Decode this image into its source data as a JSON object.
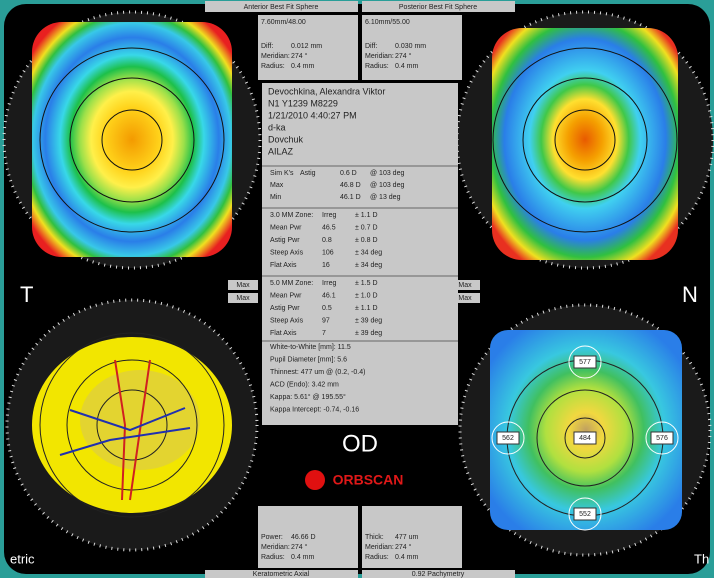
{
  "header": {
    "anterior_label": "Anterior Best Fit Sphere",
    "posterior_label": "Posterior Best Fit Sphere"
  },
  "anterior_box": {
    "title": "7.60mm/48.00",
    "rows": [
      {
        "label": "Diff:",
        "value": "0.012 mm"
      },
      {
        "label": "Meridian:",
        "value": "274 °"
      },
      {
        "label": "Radius:",
        "value": "0.4 mm"
      }
    ]
  },
  "posterior_box": {
    "title": "6.10mm/55.00",
    "rows": [
      {
        "label": "Diff:",
        "value": "0.030 mm"
      },
      {
        "label": "Meridian:",
        "value": "274 °"
      },
      {
        "label": "Radius:",
        "value": "0.4 mm"
      }
    ]
  },
  "patient": [
    "Devochkina, Alexandra Viktor",
    "N1 Y1239 M8229",
    "1/21/2010 4:40:27 PM",
    "d-ka",
    "Dovchuk",
    "AILAZ"
  ],
  "sim_k": [
    {
      "label": "Sim K's",
      "type": "Astig",
      "value": "0.6 D",
      "extra": "@ 103 deg",
      "color": "#d0206a"
    },
    {
      "label": "Max",
      "value": "46.8 D",
      "extra": "@ 103 deg",
      "color": "#d0206a"
    },
    {
      "label": "Min",
      "value": "46.1 D",
      "extra": "@ 13 deg",
      "color": "#2030c0"
    }
  ],
  "zone_3": [
    {
      "label": "3.0 MM Zone:",
      "value": "Irreg",
      "extra": "± 1.1 D",
      "color": "#222222"
    },
    {
      "label": "Mean Pwr",
      "value": "46.5",
      "extra": "± 0.7 D",
      "color": "#222222"
    },
    {
      "label": "Astig Pwr",
      "value": "0.8",
      "extra": "± 0.8 D",
      "color": "#222222"
    },
    {
      "label": "Steep Axis",
      "value": "106",
      "extra": "± 34 deg",
      "color": "#d0206a"
    },
    {
      "label": "Flat Axis",
      "value": "16",
      "extra": "± 34 deg",
      "color": "#2030c0"
    }
  ],
  "zone_5": [
    {
      "label": "5.0 MM Zone:",
      "value": "Irreg",
      "extra": "± 1.5 D",
      "color": "#222222"
    },
    {
      "label": "Mean Pwr",
      "value": "46.1",
      "extra": "± 1.0 D",
      "color": "#222222"
    },
    {
      "label": "Astig Pwr",
      "value": "0.5",
      "extra": "± 1.1 D",
      "color": "#222222"
    },
    {
      "label": "Steep Axis",
      "value": "97",
      "extra": "± 39 deg",
      "color": "#d0206a"
    },
    {
      "label": "Flat Axis",
      "value": "7",
      "extra": "± 39 deg",
      "color": "#2030c0"
    }
  ],
  "measurements": [
    "White-to-White [mm]: 11.5",
    "Pupil Diameter [mm]: 5.6",
    "Thinnest: 477 um @ (0.2, -0.4)",
    "ACD (Endo): 3.42 mm",
    "Kappa: 5.61° @ 195.55°",
    "Kappa Intercept: -0.74, -0.16"
  ],
  "eye": "OD",
  "logo": "ORBSCAN",
  "side_left": "T",
  "side_right": "N",
  "max_buttons": [
    "Max",
    "Max",
    "Max",
    "Max"
  ],
  "pachymetry_values": [
    "577",
    "562",
    "484",
    "576",
    "552"
  ],
  "power_box": {
    "rows": [
      {
        "label": "Power:",
        "value": "46.66 D"
      },
      {
        "label": "Meridian:",
        "value": "274 °"
      },
      {
        "label": "Radius:",
        "value": "0.4 mm"
      }
    ]
  },
  "thick_box": {
    "rows": [
      {
        "label": "Thick:",
        "value": "477 um"
      },
      {
        "label": "Meridian:",
        "value": "274 °"
      },
      {
        "label": "Radius:",
        "value": "0.4 mm"
      }
    ]
  },
  "footer": {
    "left_label": "Keratometric Axial",
    "right_label": "0.92 Pachymetry",
    "corner_left": "etric",
    "corner_right": "Th"
  }
}
